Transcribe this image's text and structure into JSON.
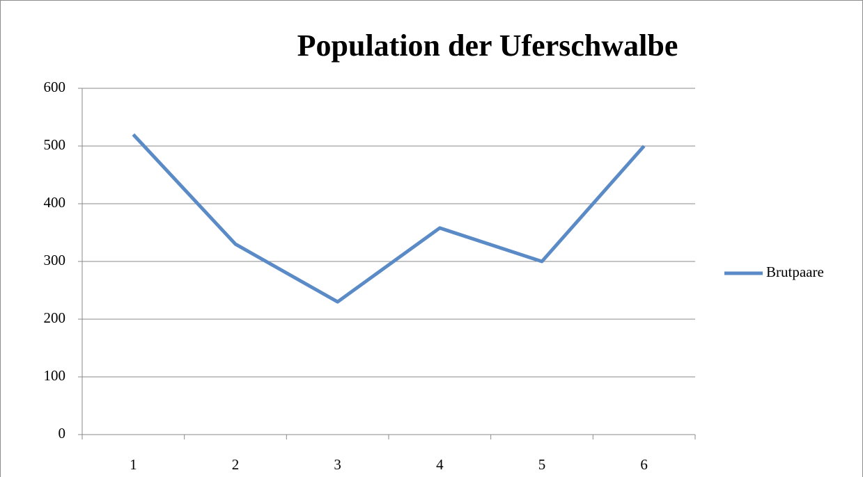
{
  "chart_data": {
    "type": "line",
    "title": "Population der Uferschwalbe",
    "categories": [
      "1",
      "2",
      "3",
      "4",
      "5",
      "6"
    ],
    "series": [
      {
        "name": "Brutpaare",
        "color": "#5b8bc6",
        "values": [
          520,
          330,
          230,
          358,
          300,
          500
        ]
      }
    ],
    "ylim": [
      0,
      600
    ],
    "yticks": [
      0,
      100,
      200,
      300,
      400,
      500,
      600
    ],
    "grid": true,
    "legend": "right"
  }
}
